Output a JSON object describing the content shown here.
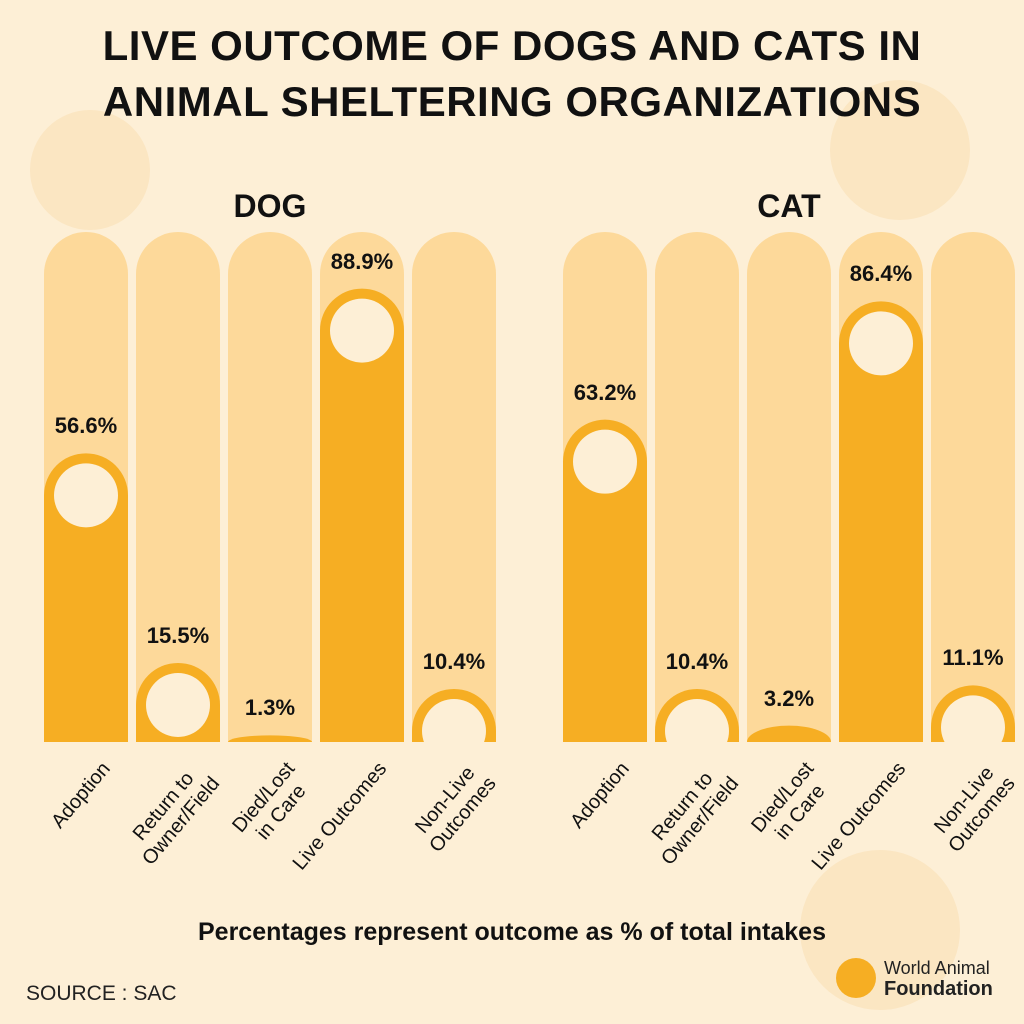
{
  "title": [
    "LIVE OUTCOME OF DOGS AND CATS IN",
    "ANIMAL SHELTERING ORGANIZATIONS"
  ],
  "chart_data": [
    {
      "type": "bar",
      "title": "DOG",
      "categories": [
        "Adoption",
        "Return to\nOwner/Field",
        "Died/Lost\nin Care",
        "Live Outcomes",
        "Non-Live\nOutcomes"
      ],
      "values": [
        56.6,
        15.5,
        1.3,
        88.9,
        10.4
      ],
      "value_labels": [
        "56.6%",
        "15.5%",
        "1.3%",
        "88.9%",
        "10.4%"
      ],
      "color": "#f6ae23",
      "ylim": [
        0,
        100
      ]
    },
    {
      "type": "bar",
      "title": "CAT",
      "categories": [
        "Adoption",
        "Return to\nOwner/Field",
        "Died/Lost\nin Care",
        "Live Outcomes",
        "Non-Live\nOutcomes"
      ],
      "values": [
        63.2,
        10.4,
        3.2,
        86.4,
        11.1
      ],
      "value_labels": [
        "63.2%",
        "10.4%",
        "3.2%",
        "86.4%",
        "11.1%"
      ],
      "color": "#f6ae23",
      "ylim": [
        0,
        100
      ]
    }
  ],
  "note": "Percentages represent outcome as % of total intakes",
  "source": "SOURCE : SAC",
  "logo": [
    "World Animal",
    "Foundation"
  ]
}
